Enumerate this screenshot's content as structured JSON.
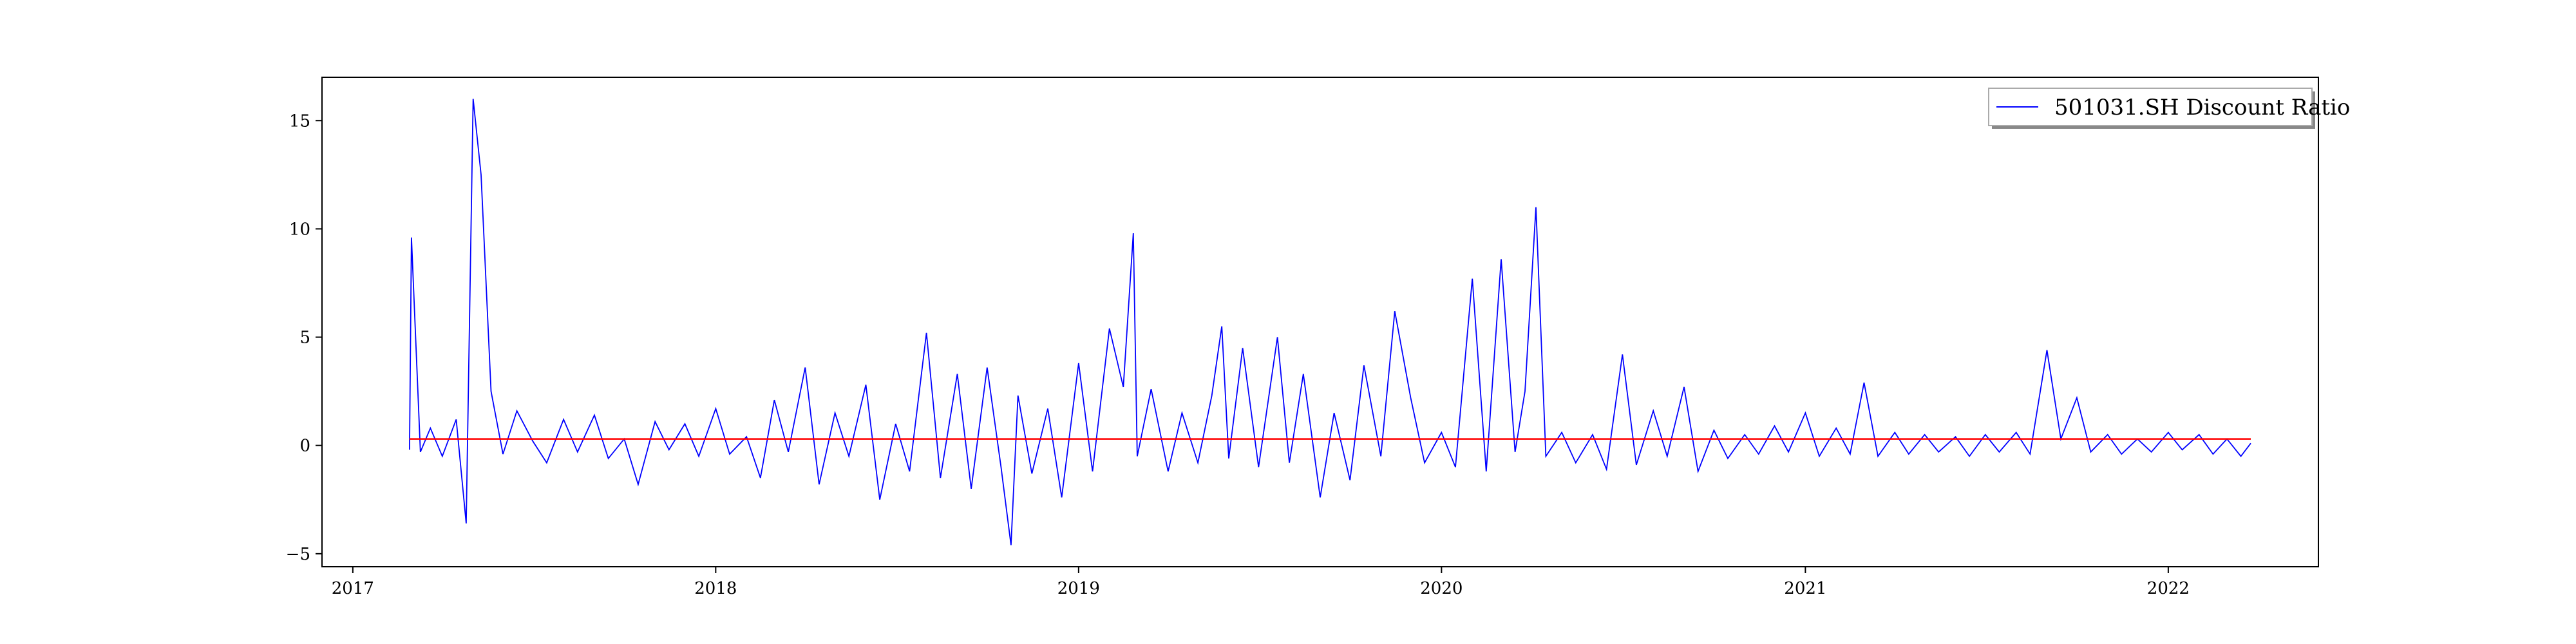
{
  "chart_data": {
    "type": "line",
    "title": "",
    "xlabel": "",
    "ylabel": "",
    "xlim": [
      "2016-12-01",
      "2022-06-01"
    ],
    "ylim": [
      -5.6,
      17.0
    ],
    "x_ticks": [
      "2017",
      "2018",
      "2019",
      "2020",
      "2021",
      "2022"
    ],
    "y_ticks": [
      "−5",
      "0",
      "5",
      "10",
      "15"
    ],
    "y_tick_values": [
      -5,
      0,
      5,
      10,
      15
    ],
    "grid": false,
    "legend": {
      "placement": "top-right",
      "entries": [
        "501031.SH Discount Ratio"
      ]
    },
    "series": [
      {
        "name": "501031.SH Discount Ratio",
        "color": "#0000ff",
        "x": [
          "2017-02-27",
          "2017-03-01",
          "2017-03-10",
          "2017-03-20",
          "2017-04-01",
          "2017-04-15",
          "2017-04-25",
          "2017-05-02",
          "2017-05-10",
          "2017-05-20",
          "2017-06-01",
          "2017-06-15",
          "2017-07-01",
          "2017-07-15",
          "2017-08-01",
          "2017-08-15",
          "2017-09-01",
          "2017-09-15",
          "2017-10-01",
          "2017-10-15",
          "2017-11-01",
          "2017-11-15",
          "2017-12-01",
          "2017-12-15",
          "2018-01-01",
          "2018-01-15",
          "2018-02-01",
          "2018-02-15",
          "2018-03-01",
          "2018-03-15",
          "2018-04-01",
          "2018-04-15",
          "2018-05-01",
          "2018-05-15",
          "2018-06-01",
          "2018-06-15",
          "2018-07-01",
          "2018-07-15",
          "2018-08-01",
          "2018-08-15",
          "2018-09-01",
          "2018-09-15",
          "2018-10-01",
          "2018-10-15",
          "2018-10-25",
          "2018-11-01",
          "2018-11-15",
          "2018-12-01",
          "2018-12-15",
          "2019-01-01",
          "2019-01-15",
          "2019-02-01",
          "2019-02-15",
          "2019-02-25",
          "2019-03-01",
          "2019-03-15",
          "2019-04-01",
          "2019-04-15",
          "2019-05-01",
          "2019-05-15",
          "2019-05-25",
          "2019-06-01",
          "2019-06-15",
          "2019-07-01",
          "2019-07-20",
          "2019-08-01",
          "2019-08-15",
          "2019-09-01",
          "2019-09-15",
          "2019-10-01",
          "2019-10-15",
          "2019-11-01",
          "2019-11-15",
          "2019-12-01",
          "2019-12-15",
          "2020-01-01",
          "2020-01-15",
          "2020-02-01",
          "2020-02-15",
          "2020-03-01",
          "2020-03-15",
          "2020-03-25",
          "2020-04-05",
          "2020-04-15",
          "2020-05-01",
          "2020-05-15",
          "2020-06-01",
          "2020-06-15",
          "2020-07-01",
          "2020-07-15",
          "2020-08-01",
          "2020-08-15",
          "2020-09-01",
          "2020-09-15",
          "2020-10-01",
          "2020-10-15",
          "2020-11-01",
          "2020-11-15",
          "2020-12-01",
          "2020-12-15",
          "2021-01-01",
          "2021-01-15",
          "2021-02-01",
          "2021-02-15",
          "2021-03-01",
          "2021-03-15",
          "2021-04-01",
          "2021-04-15",
          "2021-05-01",
          "2021-05-15",
          "2021-06-01",
          "2021-06-15",
          "2021-07-01",
          "2021-07-15",
          "2021-08-01",
          "2021-08-15",
          "2021-09-01",
          "2021-09-15",
          "2021-10-01",
          "2021-10-15",
          "2021-11-01",
          "2021-11-15",
          "2021-12-01",
          "2021-12-15",
          "2022-01-01",
          "2022-01-15",
          "2022-02-01",
          "2022-02-15",
          "2022-03-01",
          "2022-03-15",
          "2022-03-25"
        ],
        "values": [
          -0.2,
          9.6,
          -0.3,
          0.8,
          -0.5,
          1.2,
          -3.6,
          16.0,
          12.5,
          2.5,
          -0.4,
          1.6,
          0.2,
          -0.8,
          1.2,
          -0.3,
          1.4,
          -0.6,
          0.3,
          -1.8,
          1.1,
          -0.2,
          1.0,
          -0.5,
          1.7,
          -0.4,
          0.4,
          -1.5,
          2.1,
          -0.3,
          3.6,
          -1.8,
          1.5,
          -0.5,
          2.8,
          -2.5,
          1.0,
          -1.2,
          5.2,
          -1.5,
          3.3,
          -2.0,
          3.6,
          -1.0,
          -4.6,
          2.3,
          -1.3,
          1.7,
          -2.4,
          3.8,
          -1.2,
          5.4,
          2.7,
          9.8,
          -0.5,
          2.6,
          -1.2,
          1.5,
          -0.8,
          2.3,
          5.5,
          -0.6,
          4.5,
          -1.0,
          5.0,
          -0.8,
          3.3,
          -2.4,
          1.5,
          -1.6,
          3.7,
          -0.5,
          6.2,
          2.2,
          -0.8,
          0.6,
          -1.0,
          7.7,
          -1.2,
          8.6,
          -0.3,
          2.5,
          11.0,
          -0.5,
          0.6,
          -0.8,
          0.5,
          -1.1,
          4.2,
          -0.9,
          1.6,
          -0.5,
          2.7,
          -1.2,
          0.7,
          -0.6,
          0.5,
          -0.4,
          0.9,
          -0.3,
          1.5,
          -0.5,
          0.8,
          -0.4,
          2.9,
          -0.5,
          0.6,
          -0.4,
          0.5,
          -0.3,
          0.4,
          -0.5,
          0.5,
          -0.3,
          0.6,
          -0.4,
          4.4,
          0.3,
          2.2,
          -0.3,
          0.5,
          -0.4,
          0.3,
          -0.3,
          0.6,
          -0.2,
          0.5,
          -0.4,
          0.3,
          -0.5,
          0.1
        ]
      },
      {
        "name": "",
        "color": "#ff0000",
        "x": [
          "2017-02-27",
          "2022-03-25"
        ],
        "values": [
          0.3,
          0.3
        ]
      }
    ]
  }
}
